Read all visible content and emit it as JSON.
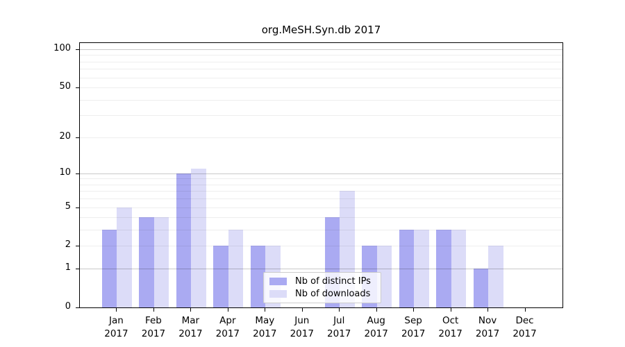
{
  "title": "org.MeSH.Syn.db 2017",
  "legend": {
    "items": [
      {
        "label": "Nb of distinct IPs",
        "color": "#aaaaf2"
      },
      {
        "label": "Nb of downloads",
        "color": "#dcdcf8"
      }
    ]
  },
  "chart_data": {
    "type": "bar",
    "title": "org.MeSH.Syn.db 2017",
    "categories": [
      "Jan 2017",
      "Feb 2017",
      "Mar 2017",
      "Apr 2017",
      "May 2017",
      "Jun 2017",
      "Jul 2017",
      "Aug 2017",
      "Sep 2017",
      "Oct 2017",
      "Nov 2017",
      "Dec 2017"
    ],
    "x_tick_months": [
      "Jan",
      "Feb",
      "Mar",
      "Apr",
      "May",
      "Jun",
      "Jul",
      "Aug",
      "Sep",
      "Oct",
      "Nov",
      "Dec"
    ],
    "x_tick_year": "2017",
    "series": [
      {
        "name": "Nb of distinct IPs",
        "color": "#aaaaf2",
        "values": [
          3,
          4,
          10,
          2,
          2,
          0,
          4,
          2,
          3,
          3,
          1,
          0
        ]
      },
      {
        "name": "Nb of downloads",
        "color": "#dcdcf8",
        "values": [
          5,
          4,
          11,
          3,
          2,
          0,
          7,
          2,
          3,
          3,
          2,
          0
        ]
      }
    ],
    "xlabel": "",
    "ylabel": "",
    "yscale": "log1p",
    "ylim": [
      0,
      100
    ],
    "yticks": [
      0,
      1,
      2,
      5,
      10,
      20,
      50,
      100
    ],
    "gridlines_minor": [
      2,
      3,
      4,
      5,
      6,
      7,
      8,
      9,
      20,
      30,
      40,
      50,
      60,
      70,
      80,
      90
    ],
    "gridlines_major": [
      1,
      10,
      100
    ],
    "grid": true,
    "legend_position": "lower-center"
  }
}
